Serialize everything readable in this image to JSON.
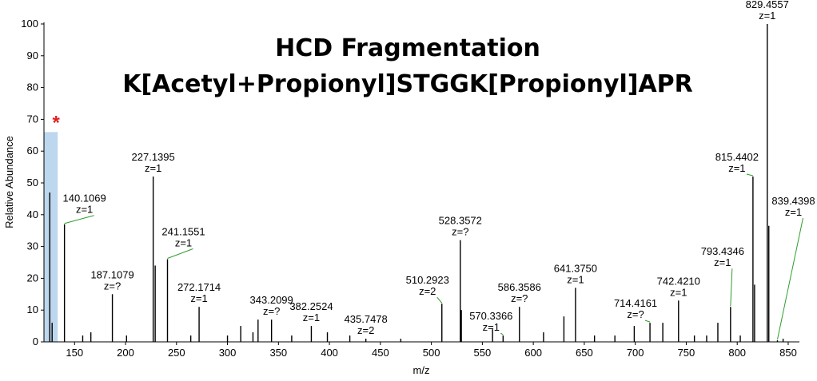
{
  "chart_data": {
    "type": "spectrum",
    "title": [
      "HCD Fragmentation",
      "K[Acetyl+Propionyl]STGGK[Propionyl]APR"
    ],
    "x_label": "m/z",
    "y_label": "Relative Abundance",
    "color": "#000000",
    "leader_color": "#2e9e2e",
    "x": [
      125.7,
      128,
      140.1069,
      158,
      166,
      187.1079,
      201,
      227.1395,
      229.1,
      241.1551,
      264,
      272.1714,
      300,
      313,
      325,
      330,
      343.2099,
      363,
      382.2524,
      398,
      420,
      435.7478,
      470,
      510.2923,
      528.3572,
      529.4,
      560,
      570.3366,
      586.3586,
      610,
      630,
      641.375,
      660,
      680,
      699,
      714.4161,
      727,
      742.421,
      758,
      770,
      781,
      793.4346,
      803,
      815.4402,
      817,
      829.4557,
      831,
      839.4398,
      845
    ],
    "values": [
      47,
      6,
      37,
      2,
      3,
      15,
      2,
      52,
      24,
      26,
      2,
      11,
      2,
      5,
      3,
      7,
      7,
      2,
      5,
      3,
      2,
      1,
      1,
      12,
      32,
      10,
      4,
      2,
      11,
      3,
      8,
      17,
      2,
      2,
      5,
      6,
      6,
      13,
      2,
      2,
      6,
      11,
      2,
      52,
      18,
      100,
      36.5,
      0.5,
      1
    ],
    "x_labels": [
      null,
      null,
      "140.1069",
      null,
      null,
      "187.1079",
      null,
      "227.1395",
      null,
      "241.1551",
      null,
      "272.1714",
      null,
      null,
      null,
      null,
      "343.2099",
      null,
      "382.2524",
      null,
      null,
      "435.7478",
      null,
      "510.2923",
      "528.3572",
      null,
      null,
      "570.3366",
      "586.3586",
      null,
      null,
      "641.3750",
      null,
      null,
      null,
      "714.4161",
      null,
      "742.4210",
      null,
      null,
      null,
      "793.4346",
      null,
      "815.4402",
      null,
      "829.4557",
      null,
      "839.4398",
      null
    ],
    "charges": [
      null,
      null,
      "z=1",
      null,
      null,
      "z=?",
      null,
      "z=1",
      null,
      "z=1",
      null,
      "z=1",
      null,
      null,
      null,
      null,
      "z=?",
      null,
      "z=1",
      null,
      null,
      "z=2",
      null,
      "z=2",
      "z=?",
      null,
      null,
      "z=1",
      "z=?",
      null,
      null,
      "z=1",
      null,
      null,
      null,
      "z=?",
      null,
      "z=1",
      null,
      null,
      null,
      "z=1",
      null,
      "z=1",
      null,
      "z=1",
      null,
      "z=1",
      null
    ],
    "highlight": {
      "xlim": [
        120,
        133.5
      ],
      "ylim": [
        0,
        66
      ],
      "color": "#bdd7ee",
      "marker": "*",
      "marker_color": "#e02020"
    },
    "xlim": [
      120,
      861
    ],
    "ylim": [
      0,
      100
    ],
    "xticks": [
      150,
      200,
      250,
      300,
      350,
      400,
      450,
      500,
      550,
      600,
      650,
      700,
      750,
      800,
      850
    ],
    "yticks": [
      0,
      10,
      20,
      30,
      40,
      50,
      60,
      70,
      80,
      90,
      100
    ]
  }
}
